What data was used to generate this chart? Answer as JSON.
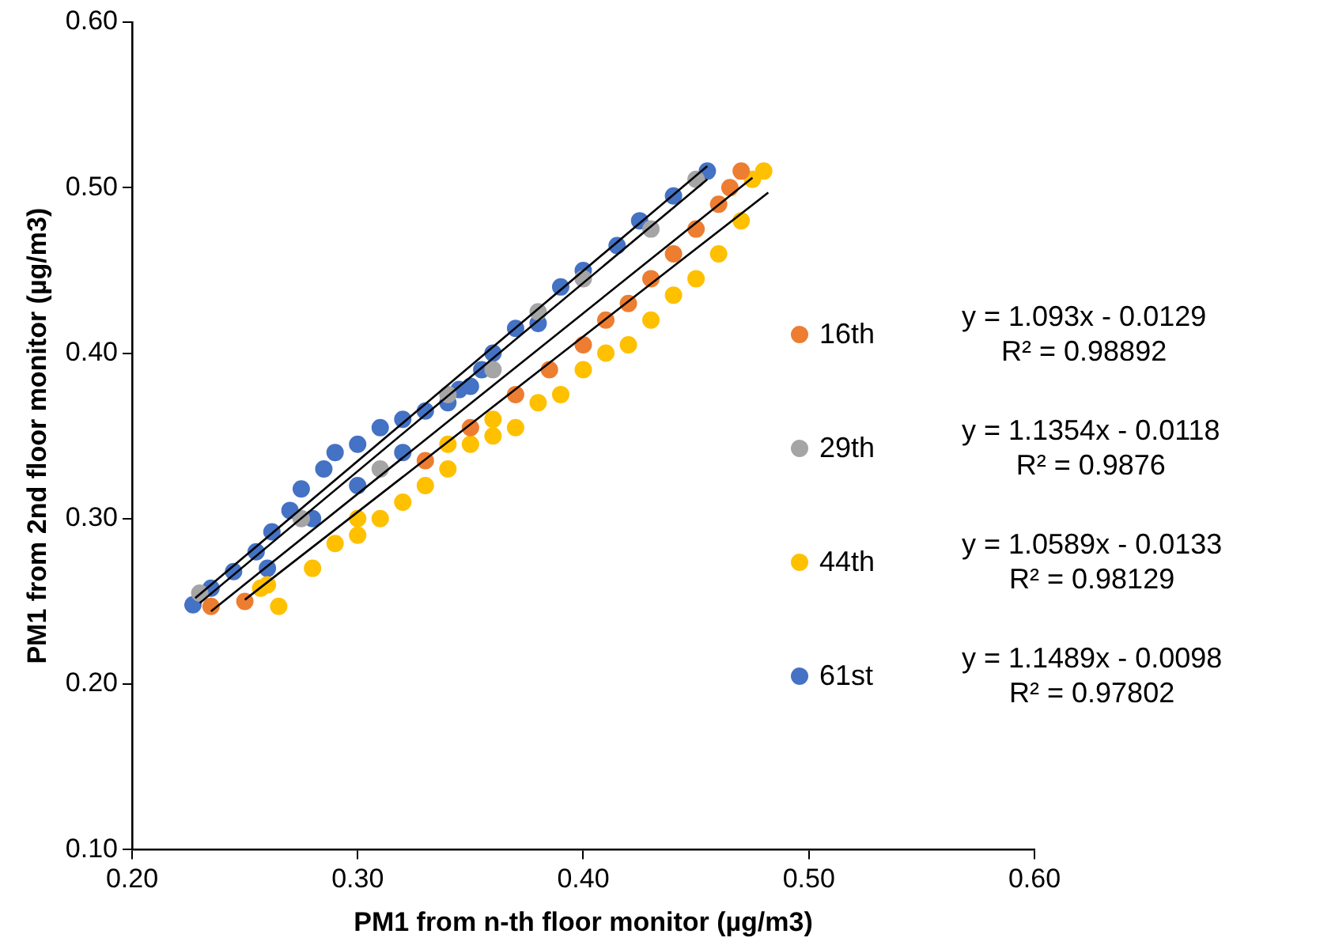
{
  "chart_data": {
    "type": "scatter",
    "xlabel": "PM1 from n-th floor monitor (µg/m3)",
    "ylabel": "PM1 from 2nd floor monitor (µg/m3)",
    "xlim": [
      0.2,
      0.6
    ],
    "xticks": [
      {
        "value": 0.2,
        "label": "0.20"
      },
      {
        "value": 0.3,
        "label": "0.30"
      },
      {
        "value": 0.4,
        "label": "0.40"
      },
      {
        "value": 0.5,
        "label": "0.50"
      },
      {
        "value": 0.6,
        "label": "0.60"
      }
    ],
    "ylim": [
      0.1,
      0.6
    ],
    "yticks": [
      {
        "value": 0.1,
        "label": "0.10"
      },
      {
        "value": 0.2,
        "label": "0.20"
      },
      {
        "value": 0.3,
        "label": "0.30"
      },
      {
        "value": 0.4,
        "label": "0.40"
      },
      {
        "value": 0.5,
        "label": "0.50"
      },
      {
        "value": 0.6,
        "label": "0.60"
      }
    ],
    "grid": false,
    "legend": "right",
    "marker": "circle",
    "series": [
      {
        "name": "16th",
        "color": "#ed7d31",
        "x": [
          0.235,
          0.25,
          0.33,
          0.35,
          0.37,
          0.385,
          0.4,
          0.41,
          0.42,
          0.43,
          0.44,
          0.45,
          0.46,
          0.465,
          0.47
        ],
        "values": [
          0.247,
          0.25,
          0.335,
          0.355,
          0.375,
          0.39,
          0.405,
          0.42,
          0.43,
          0.445,
          0.46,
          0.475,
          0.49,
          0.5,
          0.51
        ]
      },
      {
        "name": "29th",
        "color": "#a5a5a5",
        "x": [
          0.23,
          0.275,
          0.31,
          0.34,
          0.36,
          0.38,
          0.4,
          0.43,
          0.45
        ],
        "values": [
          0.255,
          0.3,
          0.33,
          0.375,
          0.39,
          0.425,
          0.445,
          0.475,
          0.505
        ]
      },
      {
        "name": "44th",
        "color": "#ffc000",
        "x": [
          0.257,
          0.265,
          0.26,
          0.28,
          0.29,
          0.3,
          0.31,
          0.32,
          0.33,
          0.34,
          0.35,
          0.36,
          0.37,
          0.38,
          0.39,
          0.4,
          0.41,
          0.42,
          0.43,
          0.44,
          0.45,
          0.46,
          0.47,
          0.475,
          0.48,
          0.3,
          0.34,
          0.36
        ],
        "values": [
          0.258,
          0.247,
          0.26,
          0.27,
          0.285,
          0.29,
          0.3,
          0.31,
          0.32,
          0.33,
          0.345,
          0.35,
          0.355,
          0.37,
          0.375,
          0.39,
          0.4,
          0.405,
          0.42,
          0.435,
          0.445,
          0.46,
          0.48,
          0.505,
          0.51,
          0.3,
          0.345,
          0.36
        ]
      },
      {
        "name": "61st",
        "color": "#4472c4",
        "x": [
          0.227,
          0.235,
          0.245,
          0.255,
          0.262,
          0.27,
          0.275,
          0.285,
          0.29,
          0.3,
          0.31,
          0.32,
          0.33,
          0.34,
          0.345,
          0.355,
          0.36,
          0.37,
          0.38,
          0.39,
          0.4,
          0.415,
          0.425,
          0.44,
          0.455,
          0.3,
          0.32,
          0.28,
          0.26,
          0.35
        ],
        "values": [
          0.248,
          0.258,
          0.268,
          0.28,
          0.292,
          0.305,
          0.318,
          0.33,
          0.34,
          0.345,
          0.355,
          0.36,
          0.365,
          0.37,
          0.378,
          0.39,
          0.4,
          0.415,
          0.418,
          0.44,
          0.45,
          0.465,
          0.48,
          0.495,
          0.51,
          0.32,
          0.34,
          0.3,
          0.27,
          0.38
        ]
      },
      {
        "type": "line",
        "color": "#000000",
        "marker": "none",
        "x": [
          0.235,
          0.475
        ],
        "values": [
          0.244,
          0.506
        ]
      },
      {
        "type": "line",
        "color": "#000000",
        "marker": "none",
        "x": [
          0.23,
          0.455
        ],
        "values": [
          0.249,
          0.505
        ]
      },
      {
        "type": "line",
        "color": "#000000",
        "marker": "none",
        "x": [
          0.25,
          0.482
        ],
        "values": [
          0.251,
          0.497
        ]
      },
      {
        "type": "line",
        "color": "#000000",
        "marker": "none",
        "x": [
          0.228,
          0.455
        ],
        "values": [
          0.252,
          0.513
        ]
      }
    ],
    "annotations": [
      "y = 1.093x - 0.0129\nR² = 0.98892",
      "y = 1.1354x - 0.0118\nR² = 0.9876",
      "y = 1.0589x - 0.0133\nR² = 0.98129",
      "y = 1.1489x - 0.0098\nR² = 0.97802"
    ]
  }
}
